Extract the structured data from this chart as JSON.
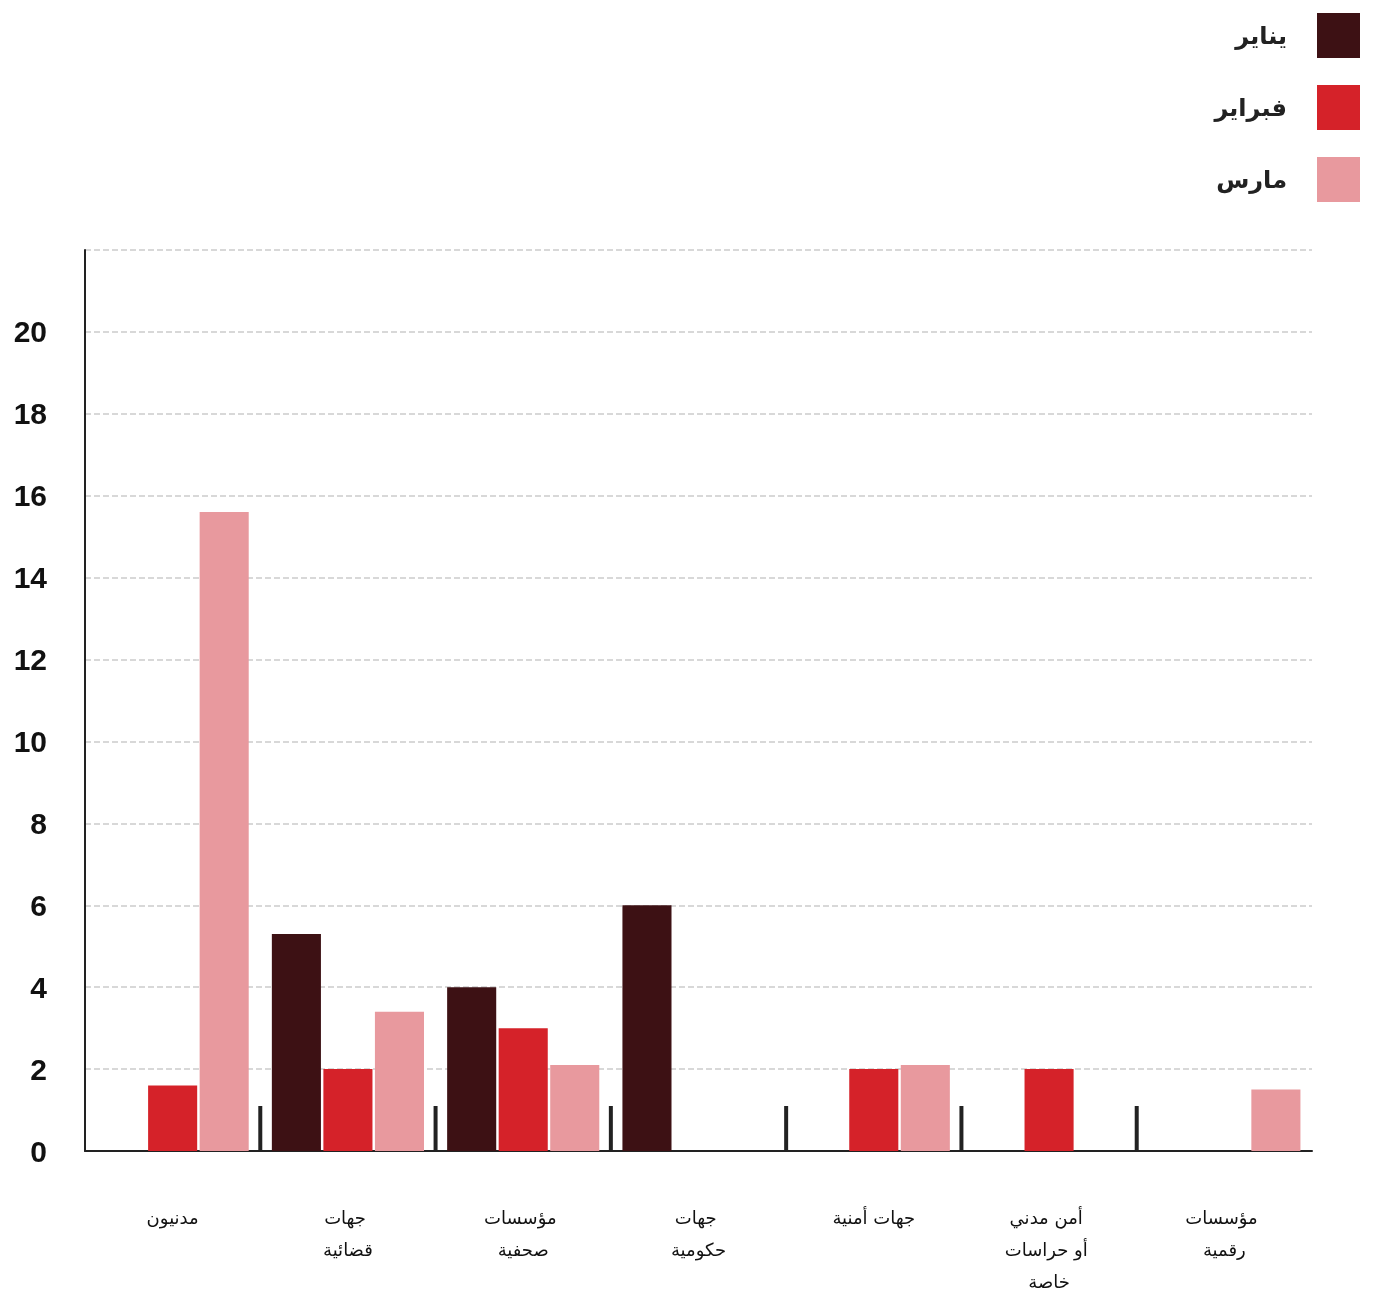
{
  "chart_data": {
    "type": "bar",
    "categories": [
      "مدنيون",
      "جهات قضائية",
      "مؤسسات صحفية",
      "جهات حكومية",
      "جهات أمنية",
      "أمن مدني أو حراسات خاصة",
      "مؤسسات رقمية"
    ],
    "series": [
      {
        "name": "يناير",
        "color": "#3d1114",
        "values": [
          0,
          5.3,
          4,
          6,
          0,
          0,
          0
        ]
      },
      {
        "name": "فبراير",
        "color": "#d52229",
        "values": [
          1.6,
          2,
          3,
          0,
          2,
          2,
          0
        ]
      },
      {
        "name": "مارس",
        "color": "#e8999e",
        "values": [
          15.6,
          3.4,
          2.1,
          0,
          2.1,
          0,
          1.5
        ]
      }
    ],
    "ylim": [
      0,
      22
    ],
    "yticks": [
      0,
      2,
      4,
      6,
      8,
      10,
      12,
      14,
      16,
      18,
      20,
      {
        "value": 22,
        "label": null
      }
    ],
    "grid": "y",
    "legend": "top right"
  }
}
